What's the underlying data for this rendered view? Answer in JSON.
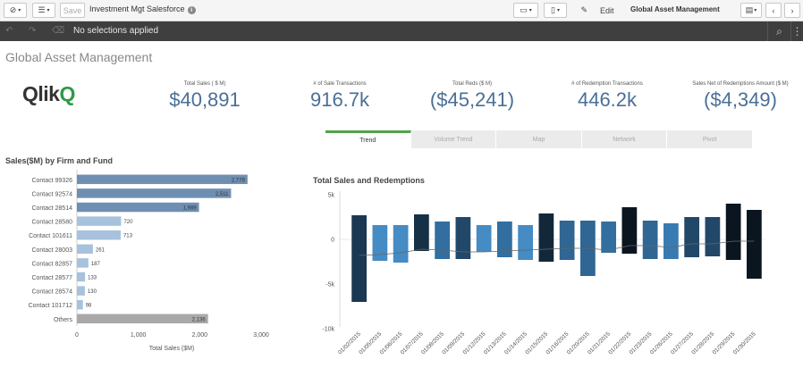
{
  "toolbar": {
    "save_label": "Save",
    "app_title": "Investment Mgt Salesforce",
    "info_label": "i",
    "edit_label": "Edit",
    "sheet_name": "Global Asset Management"
  },
  "selections": {
    "text": "No selections applied"
  },
  "sheet": {
    "title": "Global Asset Management"
  },
  "logo": {
    "text_main": "Qlik",
    "text_mark": "Q"
  },
  "kpis": [
    {
      "label": "Total Sales ( $ M)",
      "value": "$40,891"
    },
    {
      "label": "# of Sale Transactions",
      "value": "916.7k"
    },
    {
      "label": "Total Reds ($ M)",
      "value": "($45,241)"
    },
    {
      "label": "# of Redemption Transactions",
      "value": "446.2k"
    },
    {
      "label": "Sales Net of Redemptions Amount ($ M)",
      "value": "($4,349)"
    }
  ],
  "tabs": [
    "Trend",
    "Volume Trend",
    "Map",
    "Network",
    "Pivot"
  ],
  "colors": {
    "accent_green": "#52a34a",
    "kpi_blue": "#4a6f96",
    "bar_dark": "#1b3a52"
  },
  "chart_data": [
    {
      "type": "bar",
      "orientation": "horizontal",
      "title": "Sales($M) by Firm and Fund",
      "xlabel": "Total Sales ($M)",
      "categories": [
        "Contact 99326",
        "Contact 92574",
        "Contact 28514",
        "Contact 28580",
        "Contact 101611",
        "Contact 28003",
        "Contact 82857",
        "Contact 28577",
        "Contact 28574",
        "Contact 101712",
        "Others"
      ],
      "values": [
        2779,
        2511,
        1989,
        720,
        713,
        261,
        187,
        133,
        130,
        98,
        2136
      ],
      "labels": [
        "2,779",
        "2,511",
        "1,989",
        "720",
        "713",
        "261",
        "187",
        "133",
        "130",
        "98",
        "2,136"
      ],
      "xlim": [
        0,
        3000
      ],
      "xticks": [
        "0",
        "1,000",
        "2,000",
        "3,000"
      ]
    },
    {
      "type": "bar",
      "subtype": "waterfall",
      "title": "Total Sales and Redemptions",
      "ylim": [
        -10000,
        5000
      ],
      "yticks": [
        "5k",
        "0",
        "-5k",
        "-10k"
      ],
      "ytick_values": [
        5000,
        0,
        -5000,
        -10000
      ],
      "categories": [
        "01/02/2015",
        "01/05/2015",
        "01/06/2015",
        "01/07/2015",
        "01/08/2015",
        "01/09/2015",
        "01/12/2015",
        "01/13/2015",
        "01/14/2015",
        "01/15/2015",
        "01/16/2015",
        "01/20/2015",
        "01/21/2015",
        "01/22/2015",
        "01/23/2015",
        "01/26/2015",
        "01/27/2015",
        "01/28/2015",
        "01/29/2015",
        "01/30/2015"
      ],
      "sales": [
        2700,
        1600,
        1600,
        2800,
        2000,
        2500,
        1600,
        2000,
        1600,
        2900,
        2100,
        2100,
        2000,
        3600,
        2100,
        1800,
        2500,
        2500,
        4000,
        3300
      ],
      "redemptions": [
        -7000,
        -2400,
        -2600,
        -1300,
        -2200,
        -2200,
        -1400,
        -2000,
        -2300,
        -2500,
        -2300,
        -4100,
        -1500,
        -1600,
        -2200,
        -2200,
        -2000,
        -1900,
        -2300,
        -4400
      ],
      "net": [
        -1800,
        -1700,
        -1500,
        -1100,
        -1200,
        -1400,
        -1400,
        -1300,
        -1200,
        -1100,
        -1000,
        -1000,
        -1200,
        -700,
        -700,
        -900,
        -500,
        -500,
        -200,
        -200
      ]
    }
  ]
}
